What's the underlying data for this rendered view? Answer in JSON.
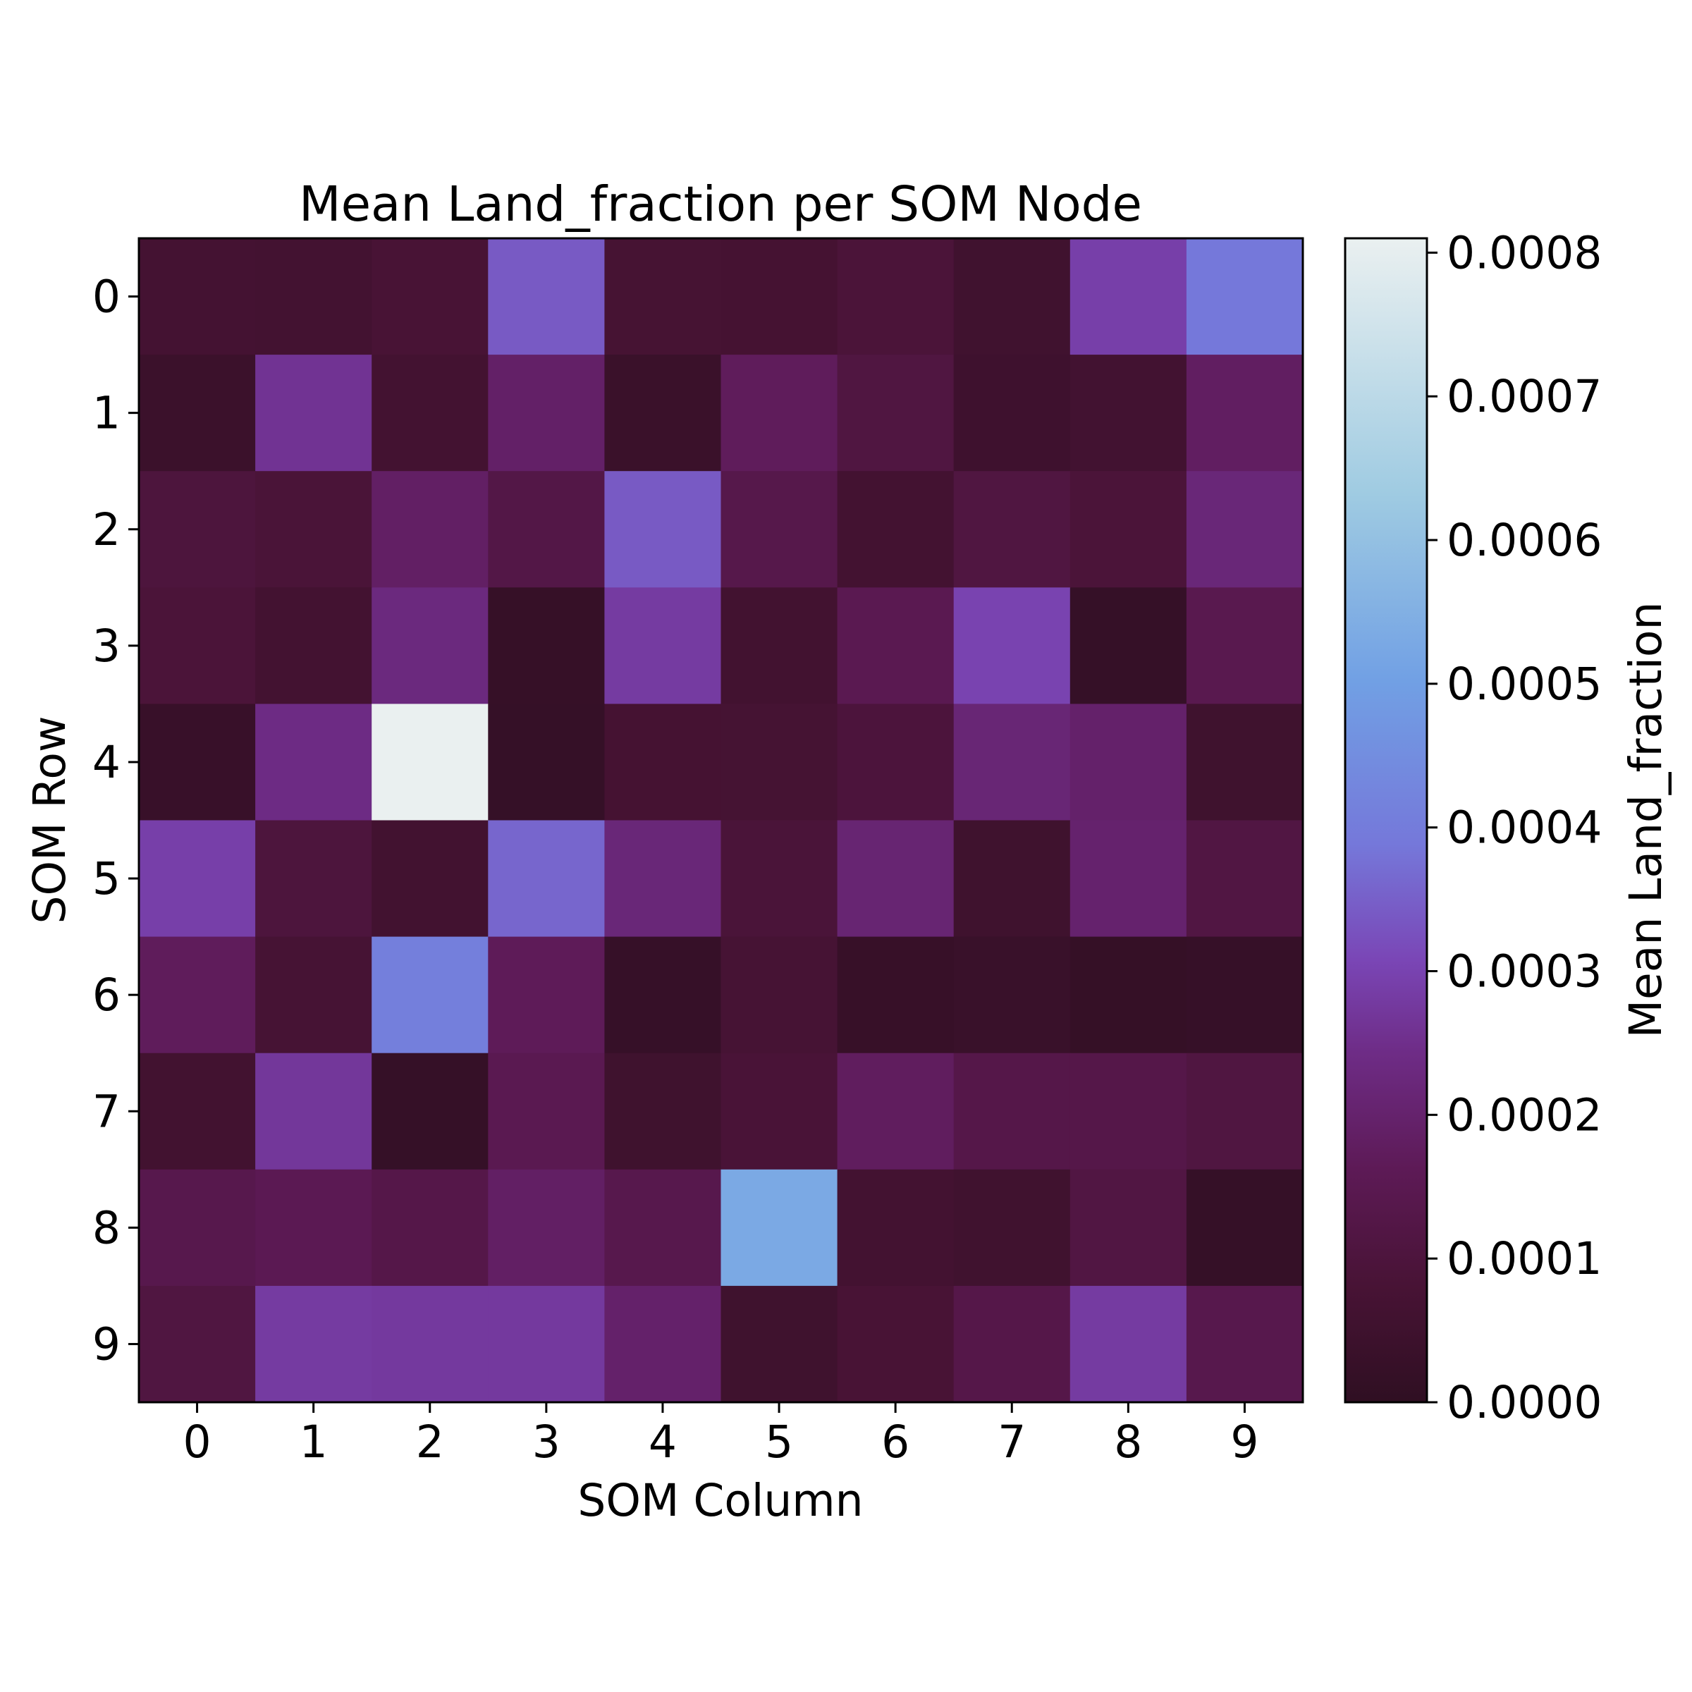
{
  "chart_data": {
    "type": "heatmap",
    "title": "Mean Land_fraction per SOM Node",
    "xlabel": "SOM Column",
    "ylabel": "SOM Row",
    "x_categories": [
      "0",
      "1",
      "2",
      "3",
      "4",
      "5",
      "6",
      "7",
      "8",
      "9"
    ],
    "y_categories": [
      "0",
      "1",
      "2",
      "3",
      "4",
      "5",
      "6",
      "7",
      "8",
      "9"
    ],
    "values": [
      [
        6.8e-05,
        6.4e-05,
        8.2e-05,
        0.00034,
        7.4e-05,
        7e-05,
        9.2e-05,
        5.6e-05,
        0.00029,
        0.00039
      ],
      [
        4e-05,
        0.00026,
        6.6e-05,
        0.00019,
        3.6e-05,
        0.00017,
        0.00011,
        5e-05,
        6.2e-05,
        0.00018
      ],
      [
        0.0001,
        8.8e-05,
        0.000185,
        0.000125,
        0.00034,
        0.000135,
        6.4e-05,
        0.00011,
        9.2e-05,
        0.00022
      ],
      [
        9.2e-05,
        6.4e-05,
        0.00023,
        2.2e-05,
        0.00028,
        6e-05,
        0.00015,
        0.0003,
        2e-05,
        0.000145
      ],
      [
        2.8e-05,
        0.00024,
        0.00081,
        2e-05,
        7e-05,
        7.2e-05,
        9.8e-05,
        0.000215,
        0.000195,
        5.2e-05
      ],
      [
        0.00029,
        0.0001,
        6e-05,
        0.00036,
        0.00022,
        9e-05,
        0.00021,
        5.2e-05,
        0.0002,
        0.000115
      ],
      [
        0.00017,
        7.6e-05,
        0.00041,
        0.000165,
        2.4e-05,
        7.5e-05,
        2.6e-05,
        3.2e-05,
        1.8e-05,
        2.4e-05
      ],
      [
        6e-05,
        0.00027,
        2e-05,
        0.00015,
        5.2e-05,
        8.5e-05,
        0.000175,
        0.00013,
        0.00013,
        0.00011
      ],
      [
        0.00014,
        0.000155,
        0.00013,
        0.000185,
        0.00014,
        0.00053,
        6.6e-05,
        5.6e-05,
        0.000115,
        2e-05
      ],
      [
        0.00011,
        0.00028,
        0.000275,
        0.000275,
        0.000195,
        5.2e-05,
        8e-05,
        0.00013,
        0.00028,
        0.00014
      ]
    ],
    "colorbar": {
      "label": "Mean Land_fraction",
      "vmin": 0.0,
      "vmax": 0.00081,
      "ticks": [
        0.0,
        0.0001,
        0.0002,
        0.0003,
        0.0004,
        0.0005,
        0.0006,
        0.0007,
        0.0008
      ],
      "tick_labels": [
        "0.0000",
        "0.0001",
        "0.0002",
        "0.0003",
        "0.0004",
        "0.0005",
        "0.0006",
        "0.0007",
        "0.0008"
      ],
      "colormap_stops": [
        {
          "pos": 0.0,
          "color": "#2f0f22"
        },
        {
          "pos": 0.1,
          "color": "#481335"
        },
        {
          "pos": 0.2,
          "color": "#5d1a56"
        },
        {
          "pos": 0.3,
          "color": "#6e2c86"
        },
        {
          "pos": 0.38,
          "color": "#7a46b6"
        },
        {
          "pos": 0.48,
          "color": "#7578da"
        },
        {
          "pos": 0.62,
          "color": "#71a0e4"
        },
        {
          "pos": 0.78,
          "color": "#9fcbe2"
        },
        {
          "pos": 1.0,
          "color": "#eaf0f0"
        }
      ]
    },
    "grid": false,
    "legend": "none"
  }
}
